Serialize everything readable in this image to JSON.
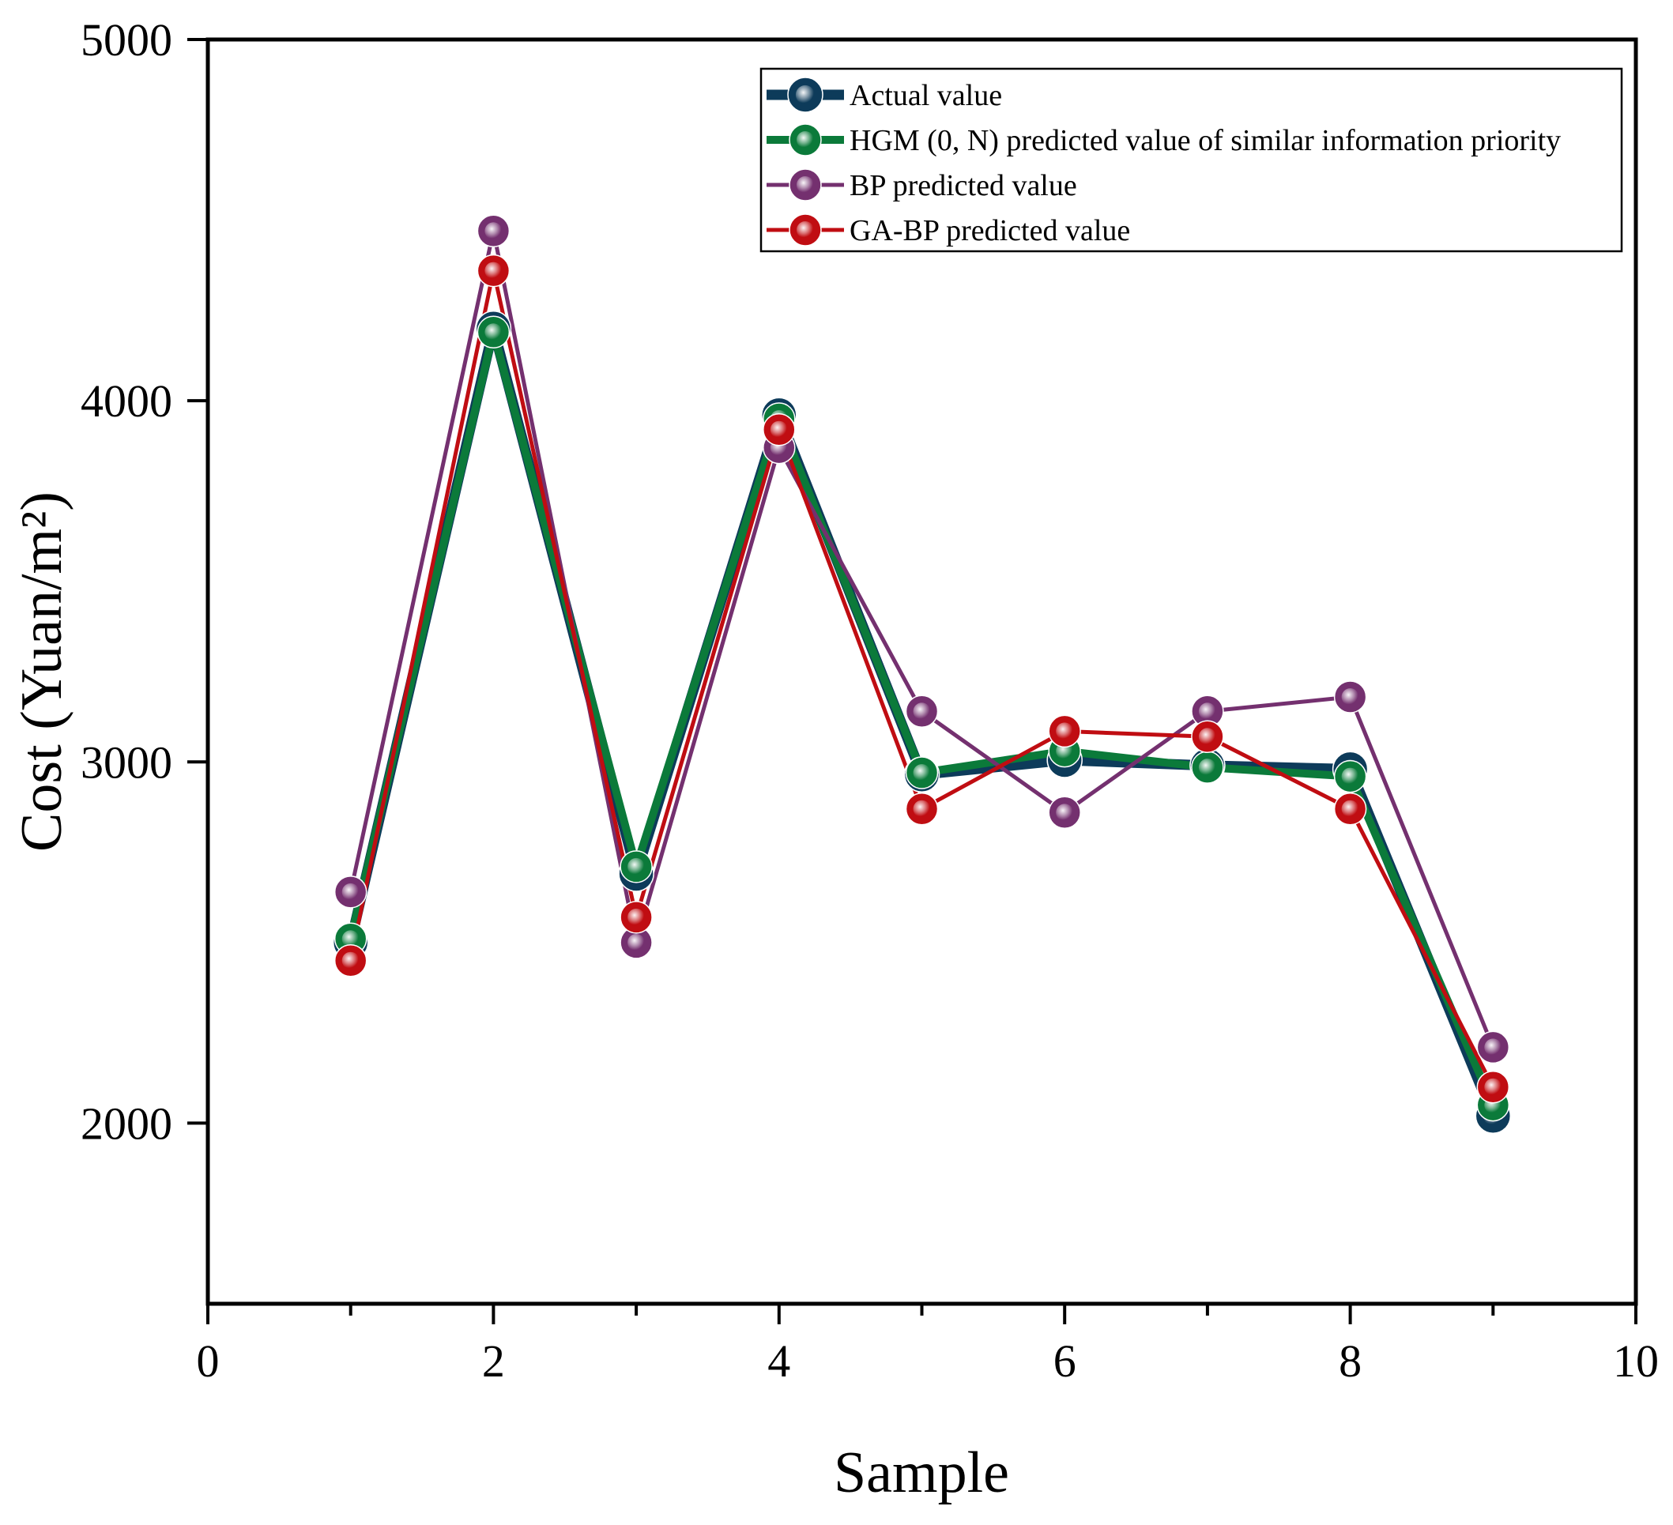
{
  "colors": {
    "actual": "#0d3b5a",
    "hgm": "#0b7a3a",
    "bp": "#74306f",
    "gabp": "#c00d12",
    "axis": "#000000",
    "background": "#ffffff"
  },
  "chart_data": {
    "type": "line",
    "title": "",
    "xlabel": "Sample",
    "ylabel": "Cost (Yuan/m²)",
    "xlim": [
      0,
      10
    ],
    "ylim": [
      1500,
      5000
    ],
    "x_ticks": [
      0,
      2,
      4,
      6,
      8,
      10
    ],
    "y_ticks": [
      2000,
      3000,
      4000,
      5000
    ],
    "x_minor_ticks": [
      1,
      3,
      5,
      7,
      9
    ],
    "grid": false,
    "legend_position": "top-right",
    "x": [
      1,
      2,
      3,
      4,
      5,
      6,
      7,
      8,
      9
    ],
    "series": [
      {
        "name": "Actual value",
        "values": [
          2500,
          4200,
          2690,
          3960,
          2965,
          3005,
          2990,
          2980,
          2020
        ]
      },
      {
        "name": "HGM (0, N) predicted value of similar information priority",
        "values": [
          2510,
          4190,
          2710,
          3950,
          2970,
          3030,
          2985,
          2960,
          2050
        ]
      },
      {
        "name": "BP predicted value",
        "values": [
          2640,
          4470,
          2500,
          3870,
          3140,
          2860,
          3140,
          3180,
          2210
        ]
      },
      {
        "name": "GA-BP predicted value",
        "values": [
          2450,
          4360,
          2570,
          3920,
          2870,
          3085,
          3070,
          2870,
          2100
        ]
      }
    ]
  }
}
